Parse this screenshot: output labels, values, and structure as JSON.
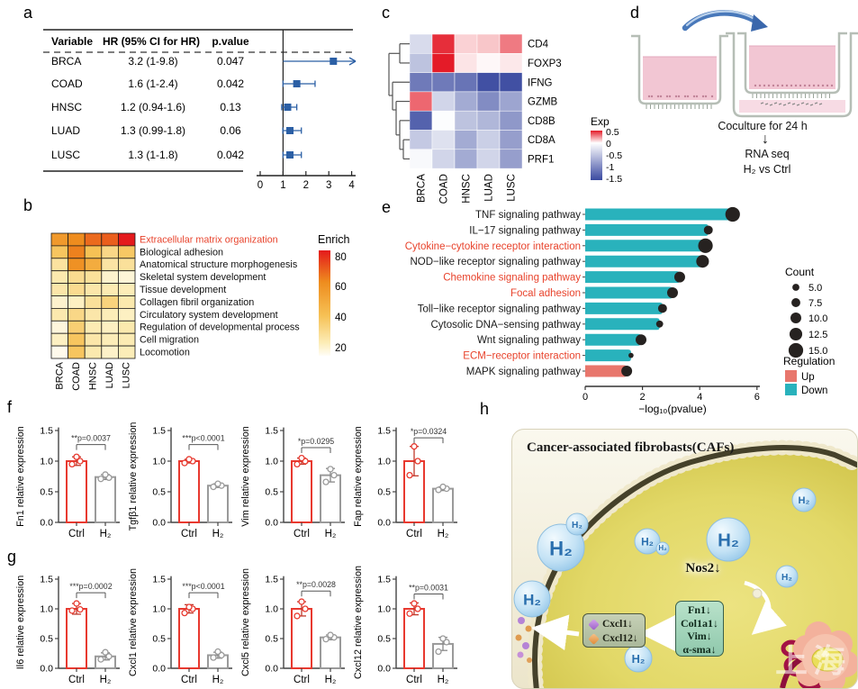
{
  "labels": {
    "a": "a",
    "b": "b",
    "c": "c",
    "d": "d",
    "e": "e",
    "f": "f",
    "g": "g",
    "h": "h"
  },
  "colors": {
    "forest_marker": "#2b5fa5",
    "up": "#e8766c",
    "down": "#29b2bc",
    "red_label": "#e8432c",
    "ctrl": "#e8392f",
    "h2": "#9a9a9a",
    "dot": "#262220",
    "heat_max": "#e41a1c",
    "exp_neg": "#3a4aa0"
  },
  "chart_data": [
    {
      "panel": "a",
      "type": "table",
      "columns": [
        "Variable",
        "HR (95% CI for HR)",
        "p.value"
      ],
      "rows": [
        {
          "variable": "BRCA",
          "hr_text": "3.2 (1-9.8)",
          "p_value": "0.047",
          "hr": 3.2,
          "ci_low": 1.0,
          "ci_high": 9.8,
          "arrow": true
        },
        {
          "variable": "COAD",
          "hr_text": "1.6 (1-2.4)",
          "p_value": "0.042",
          "hr": 1.6,
          "ci_low": 1.0,
          "ci_high": 2.4,
          "arrow": false
        },
        {
          "variable": "HNSC",
          "hr_text": "1.2 (0.94-1.6)",
          "p_value": "0.13",
          "hr": 1.2,
          "ci_low": 0.94,
          "ci_high": 1.6,
          "arrow": false
        },
        {
          "variable": "LUAD",
          "hr_text": "1.3 (0.99-1.8)",
          "p_value": "0.06",
          "hr": 1.3,
          "ci_low": 0.99,
          "ci_high": 1.8,
          "arrow": false
        },
        {
          "variable": "LUSC",
          "hr_text": "1.3 (1-1.8)",
          "p_value": "0.042",
          "hr": 1.3,
          "ci_low": 1.0,
          "ci_high": 1.8,
          "arrow": false
        }
      ],
      "x_ticks": [
        0,
        1,
        2,
        3,
        4
      ],
      "x_range": [
        0,
        4
      ],
      "ref_line": 1
    },
    {
      "panel": "b",
      "type": "heatmap",
      "legend_title": "Enrich",
      "legend_ticks": [
        80,
        60,
        40,
        20
      ],
      "columns": [
        "BRCA",
        "COAD",
        "HNSC",
        "LUAD",
        "LUSC"
      ],
      "rows": [
        "Extracellular matrix organization",
        "Biological adhesion",
        "Anatomical structure morphogenesis",
        "Skeletal system development",
        "Tissue development",
        "Collagen fibril organization",
        "Circulatory system development",
        "Regulation of developmental process",
        "Cell migration",
        "Locomotion"
      ],
      "highlight_row": 0,
      "values": [
        [
          55,
          60,
          66,
          68,
          80
        ],
        [
          38,
          62,
          40,
          30,
          37
        ],
        [
          25,
          58,
          48,
          24,
          26
        ],
        [
          22,
          28,
          26,
          16,
          14
        ],
        [
          23,
          28,
          23,
          21,
          20
        ],
        [
          16,
          18,
          26,
          32,
          22
        ],
        [
          22,
          30,
          23,
          20,
          18
        ],
        [
          13,
          34,
          21,
          18,
          22
        ],
        [
          18,
          38,
          23,
          20,
          21
        ],
        [
          10,
          38,
          22,
          17,
          20
        ]
      ]
    },
    {
      "panel": "c",
      "type": "heatmap",
      "legend_title": "Exp",
      "legend_ticks": [
        "0.5",
        "0",
        "-0.5",
        "-1",
        "-1.5"
      ],
      "columns": [
        "BRCA",
        "COAD",
        "HNSC",
        "LUAD",
        "LUSC"
      ],
      "rows": [
        "CD4",
        "FOXP3",
        "IFNG",
        "GZMB",
        "CD8B",
        "CD8A",
        "PRF1"
      ],
      "values": [
        [
          -0.3,
          0.55,
          0.12,
          0.15,
          0.35
        ],
        [
          -0.5,
          0.6,
          0.07,
          0.02,
          0.06
        ],
        [
          -1.1,
          -1.1,
          -1.15,
          -1.45,
          -1.45
        ],
        [
          0.4,
          -0.35,
          -0.7,
          -0.95,
          -0.75
        ],
        [
          -1.3,
          -0.02,
          -0.5,
          -0.6,
          -0.85
        ],
        [
          -0.45,
          -0.25,
          -0.7,
          -0.4,
          -0.8
        ],
        [
          -0.05,
          -0.35,
          -0.7,
          -0.35,
          -0.8
        ]
      ]
    },
    {
      "panel": "e",
      "type": "bar",
      "orientation": "horizontal",
      "xlabel": "−log₁₀(pvalue)",
      "x_ticks": [
        0,
        2,
        4,
        6
      ],
      "x_range": [
        0,
        6
      ],
      "categories": [
        "TNF signaling pathway",
        "IL−17 signaling pathway",
        "Cytokine−cytokine receptor interaction",
        "NOD−like receptor signaling pathway",
        "Chemokine signaling pathway",
        "Focal adhesion",
        "Toll−like receptor signaling pathway",
        "Cytosolic DNA−sensing pathway",
        "Wnt signaling pathway",
        "ECM−receptor interaction",
        "MAPK signaling pathway"
      ],
      "values": [
        5.15,
        4.3,
        4.2,
        4.1,
        3.3,
        3.05,
        2.7,
        2.6,
        1.95,
        1.6,
        1.45
      ],
      "counts": [
        15,
        7.5,
        15,
        12.5,
        10,
        10,
        7.5,
        5,
        10,
        2.5,
        10
      ],
      "regulation": [
        "Down",
        "Down",
        "Down",
        "Down",
        "Down",
        "Down",
        "Down",
        "Down",
        "Down",
        "Down",
        "Up"
      ],
      "red_label_indexes": [
        2,
        4,
        5,
        9
      ],
      "legend": {
        "count_title": "Count",
        "count_sizes": [
          "5.0",
          "7.5",
          "10.0",
          "12.5",
          "15.0"
        ],
        "count_values": [
          5,
          7.5,
          10,
          12.5,
          15
        ],
        "regulation_title": "Regulation",
        "up_label": "Up",
        "down_label": "Down"
      }
    },
    {
      "panel": "f",
      "type": "bar",
      "x_categories": [
        "Ctrl",
        "H₂"
      ],
      "y_ticks": [
        "0.0",
        "0.5",
        "1.0",
        "1.5"
      ],
      "ylim": [
        0,
        1.5
      ],
      "charts": [
        {
          "ylabel": "Fn1 relative expression",
          "p_label": "**p=0.0037",
          "bracket_y": 1.27,
          "ctrl": {
            "mean": 1.0,
            "sd": 0.07,
            "points": [
              0.95,
              1.0,
              1.07
            ]
          },
          "h2": {
            "mean": 0.74,
            "sd": 0.04,
            "points": [
              0.71,
              0.73,
              0.78
            ]
          }
        },
        {
          "ylabel": "Tgfβ1 relative expression",
          "p_label": "***p<0.0001",
          "bracket_y": 1.27,
          "ctrl": {
            "mean": 1.0,
            "sd": 0.03,
            "points": [
              0.97,
              1.0,
              1.03
            ]
          },
          "h2": {
            "mean": 0.6,
            "sd": 0.03,
            "points": [
              0.58,
              0.6,
              0.63
            ]
          }
        },
        {
          "ylabel": "Vim relative expression",
          "p_label": "*p=0.0295",
          "bracket_y": 1.22,
          "ctrl": {
            "mean": 1.0,
            "sd": 0.05,
            "points": [
              0.95,
              1.0,
              1.05
            ]
          },
          "h2": {
            "mean": 0.77,
            "sd": 0.11,
            "points": [
              0.66,
              0.77,
              0.87
            ]
          }
        },
        {
          "ylabel": "Fap relative expression",
          "p_label": "*p=0.0324",
          "bracket_y": 1.38,
          "ctrl": {
            "mean": 1.0,
            "sd": 0.24,
            "points": [
              0.77,
              1.0,
              1.24
            ]
          },
          "h2": {
            "mean": 0.55,
            "sd": 0.03,
            "points": [
              0.53,
              0.55,
              0.58
            ]
          }
        }
      ]
    },
    {
      "panel": "g",
      "type": "bar",
      "x_categories": [
        "Ctrl",
        "H₂"
      ],
      "y_ticks": [
        "0.0",
        "0.5",
        "1.0",
        "1.5"
      ],
      "ylim": [
        0,
        1.5
      ],
      "charts": [
        {
          "ylabel": "Il6 relative expression",
          "p_label": "***p=0.0002",
          "bracket_y": 1.27,
          "ctrl": {
            "mean": 1.0,
            "sd": 0.09,
            "points": [
              0.97,
              0.99,
              1.09
            ]
          },
          "h2": {
            "mean": 0.2,
            "sd": 0.06,
            "points": [
              0.15,
              0.2,
              0.27
            ]
          }
        },
        {
          "ylabel": "Cxcl1 relative expression",
          "p_label": "***p<0.0001",
          "bracket_y": 1.27,
          "ctrl": {
            "mean": 1.0,
            "sd": 0.07,
            "points": [
              0.93,
              1.0,
              1.03
            ]
          },
          "h2": {
            "mean": 0.22,
            "sd": 0.05,
            "points": [
              0.18,
              0.22,
              0.28
            ]
          }
        },
        {
          "ylabel": "Cxcl5 relative expression",
          "p_label": "**p=0.0028",
          "bracket_y": 1.3,
          "ctrl": {
            "mean": 1.0,
            "sd": 0.12,
            "points": [
              0.88,
              1.0,
              1.12
            ]
          },
          "h2": {
            "mean": 0.52,
            "sd": 0.04,
            "points": [
              0.49,
              0.52,
              0.56
            ]
          }
        },
        {
          "ylabel": "Cxcl12 relative expression",
          "p_label": "**p=0.0031",
          "bracket_y": 1.25,
          "ctrl": {
            "mean": 1.0,
            "sd": 0.1,
            "points": [
              0.92,
              1.0,
              1.09
            ]
          },
          "h2": {
            "mean": 0.41,
            "sd": 0.11,
            "points": [
              0.28,
              0.44,
              0.5
            ]
          }
        }
      ]
    }
  ],
  "panel_d": {
    "coculture_label": "Coculture for 24 h",
    "down_arrow": "↓",
    "rna_label": "RNA seq",
    "compare_label": "H₂ vs Ctrl"
  },
  "panel_h": {
    "title": "Cancer-associated fibrobasts(CAFs)",
    "nos2_label": "Nos2↓",
    "gene_box": [
      "Fn1↓",
      "Col1a1↓",
      "Vim↓",
      "α-sma↓"
    ],
    "chemokine_box": [
      "Cxcl1↓",
      "Cxcl12↓"
    ],
    "bubble_label": "H₂",
    "watermark": "上海"
  }
}
